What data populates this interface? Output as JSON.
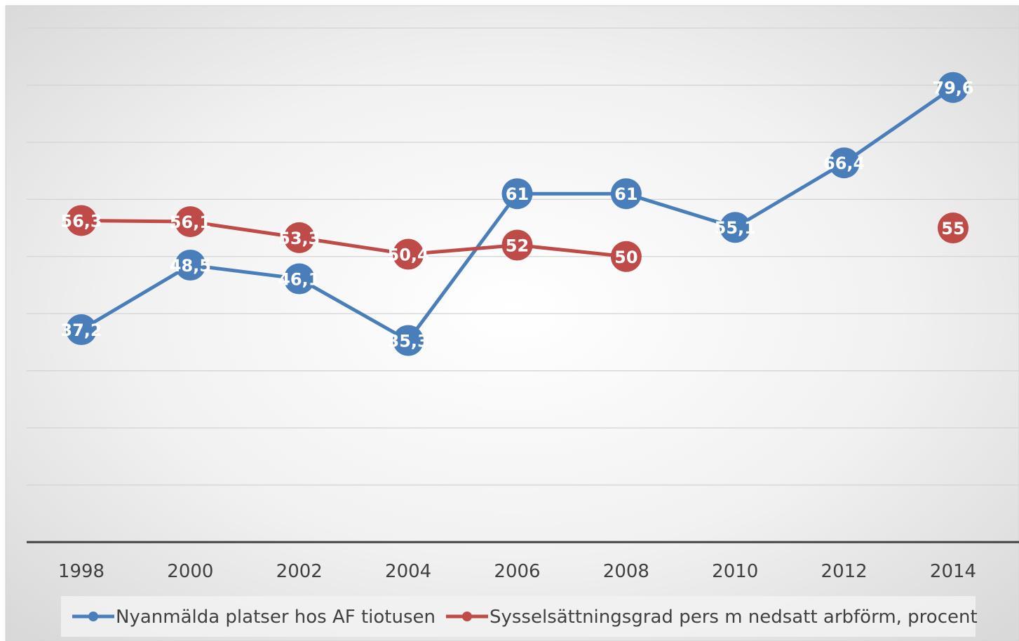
{
  "chart_data": {
    "type": "line",
    "title": "",
    "xlabel": "",
    "ylabel": "",
    "categories": [
      "1998",
      "2000",
      "2002",
      "2004",
      "2006",
      "2008",
      "2010",
      "2012",
      "2014"
    ],
    "ylim": [
      0,
      90
    ],
    "grid": true,
    "legend_position": "bottom",
    "series": [
      {
        "name": "Nyanmälda platser hos AF tiotusen",
        "color": "#4a7ebb",
        "values": [
          37.2,
          48.5,
          46.1,
          35.3,
          61,
          61,
          55.1,
          66.4,
          79.6
        ],
        "labels": [
          "37,2",
          "48,5",
          "46,1",
          "35,3",
          "61",
          "61",
          "55,1",
          "66,4",
          "79,6"
        ]
      },
      {
        "name": "Sysselsättningsgrad pers m nedsatt arbförm, procent",
        "color": "#be4b48",
        "values": [
          56.3,
          56.1,
          53.3,
          50.4,
          52,
          50,
          null,
          null,
          55
        ],
        "labels": [
          "56,3",
          "56,1",
          "53,3",
          "50,4",
          "52",
          "50",
          "",
          "",
          "55"
        ]
      }
    ]
  }
}
